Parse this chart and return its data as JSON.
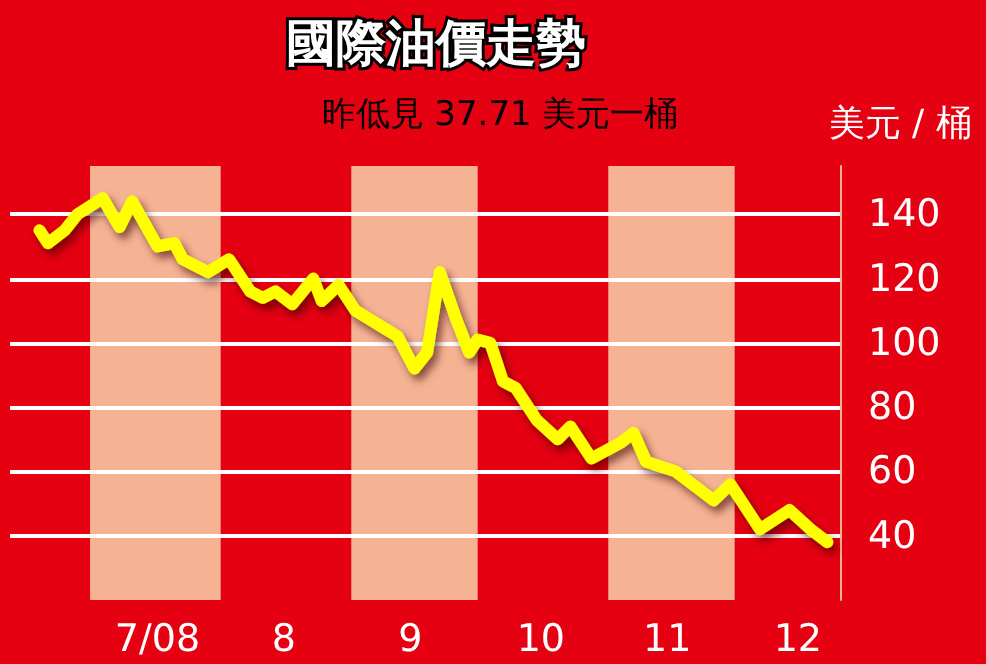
{
  "chart_data": {
    "type": "line",
    "title": "國際油價走勢",
    "subtitle": "昨低見 37.71 美元一桶",
    "ylabel": "美元 / 桶",
    "x": [
      "2008-06-19",
      "2008-06-21",
      "2008-06-25",
      "2008-06-28",
      "2008-07-04",
      "2008-07-08",
      "2008-07-11",
      "2008-07-17",
      "2008-07-21",
      "2008-07-23",
      "2008-07-29",
      "2008-08-03",
      "2008-08-08",
      "2008-08-11",
      "2008-08-14",
      "2008-08-18",
      "2008-08-23",
      "2008-08-25",
      "2008-08-29",
      "2008-09-02",
      "2008-09-12",
      "2008-09-16",
      "2008-09-19",
      "2008-09-22",
      "2008-09-26",
      "2008-09-29",
      "2008-10-01",
      "2008-10-04",
      "2008-10-07",
      "2008-10-10",
      "2008-10-15",
      "2008-10-20",
      "2008-10-23",
      "2008-10-28",
      "2008-11-04",
      "2008-11-07",
      "2008-11-10",
      "2008-11-17",
      "2008-11-26",
      "2008-11-30",
      "2008-12-07",
      "2008-12-14",
      "2008-12-19",
      "2008-12-23"
    ],
    "series": [
      {
        "color": "#ffff00",
        "values": [
          135,
          131,
          135,
          140,
          145,
          136,
          144,
          130,
          131,
          126,
          122,
          126,
          116,
          114,
          116,
          112,
          120,
          113,
          118,
          110,
          102,
          92,
          97,
          122,
          107,
          97,
          101,
          100,
          88,
          86,
          76,
          70,
          74,
          64,
          69,
          72,
          63,
          60,
          51,
          56,
          42,
          48,
          42,
          38
        ]
      }
    ],
    "xlim": [
      "2008-06-12",
      "2008-12-26"
    ],
    "xticks": [
      {
        "value": "2008-07-17",
        "label": "7/08"
      },
      {
        "value": "2008-08-16",
        "label": "8"
      },
      {
        "value": "2008-09-15",
        "label": "9"
      },
      {
        "value": "2008-10-16",
        "label": "10"
      },
      {
        "value": "2008-11-15",
        "label": "11"
      },
      {
        "value": "2008-12-16",
        "label": "12"
      }
    ],
    "ylim": [
      20,
      155
    ],
    "yticks": [
      40,
      60,
      80,
      100,
      120,
      140
    ],
    "bands": [
      {
        "axis": "x",
        "from": "2008-07-01",
        "to": "2008-08-01",
        "color": "#f5b393"
      },
      {
        "axis": "x",
        "from": "2008-09-01",
        "to": "2008-10-01",
        "color": "#f5b393"
      },
      {
        "axis": "x",
        "from": "2008-11-01",
        "to": "2008-12-01",
        "color": "#f5b393"
      }
    ],
    "grid": "y",
    "marker": "none",
    "line_style": "solid"
  }
}
